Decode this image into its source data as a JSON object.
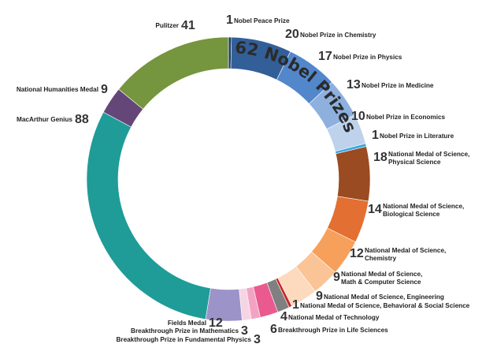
{
  "chart_data": {
    "type": "pie",
    "style": "donut",
    "start_angle_deg": 0,
    "direction": "clockwise",
    "arc_title": "62 Nobel Prizes",
    "slices": [
      {
        "label": "Nobel Peace Prize",
        "value": 1,
        "color": "#1f3d66",
        "label_lines": [
          "Nobel Peace Prize"
        ]
      },
      {
        "label": "Nobel Prize in Chemistry",
        "value": 20,
        "color": "#335f98",
        "label_lines": [
          "Nobel Prize in Chemistry"
        ]
      },
      {
        "label": "Nobel Prize in Physics",
        "value": 17,
        "color": "#5287cc",
        "label_lines": [
          "Nobel Prize in Physics"
        ]
      },
      {
        "label": "Nobel Prize in Medicine",
        "value": 13,
        "color": "#8db0de",
        "label_lines": [
          "Nobel Prize in Medicine"
        ]
      },
      {
        "label": "Nobel Prize in Economics",
        "value": 10,
        "color": "#bed2ec",
        "label_lines": [
          "Nobel Prize in Economics"
        ]
      },
      {
        "label": "Nobel Prize in Literature",
        "value": 1,
        "color": "#36a9e1",
        "label_lines": [
          "Nobel Prize in Literature"
        ]
      },
      {
        "label": "National Medal of Science, Physical Science",
        "value": 18,
        "color": "#9a4b22",
        "label_lines": [
          "National Medal of Science,",
          "Physical Science"
        ]
      },
      {
        "label": "National Medal of Science, Biological Science",
        "value": 14,
        "color": "#e46f32",
        "label_lines": [
          "National Medal of Science,",
          "Biological Science"
        ]
      },
      {
        "label": "National Medal of Science, Chemistry",
        "value": 12,
        "color": "#f7a05b",
        "label_lines": [
          "National Medal of Science,",
          "Chemistry"
        ]
      },
      {
        "label": "National Medal of Science, Math & Computer Science",
        "value": 9,
        "color": "#fbc496",
        "label_lines": [
          "National Medal of Science,",
          "Math & Computer Science"
        ]
      },
      {
        "label": "National Medal of Science, Engineering",
        "value": 9,
        "color": "#fdd9bd",
        "label_lines": [
          "National Medal of Science, Engineering"
        ]
      },
      {
        "label": "National Medal of Science, Behavioral & Social Science",
        "value": 1,
        "color": "#c62828",
        "label_lines": [
          "National Medal of Science, Behavioral & Social Science"
        ]
      },
      {
        "label": "National Medal of Technology",
        "value": 4,
        "color": "#808080",
        "label_lines": [
          "National Medal of Technology"
        ]
      },
      {
        "label": "Breakthrough Prize in Life Sciences",
        "value": 6,
        "color": "#ea5a8f",
        "label_lines": [
          "Breakthrough Prize in Life Sciences"
        ]
      },
      {
        "label": "Breakthrough Prize in Fundamental Physics",
        "value": 3,
        "color": "#f3a3c2",
        "label_lines": [
          "Breakthrough Prize in Fundamental Physics"
        ]
      },
      {
        "label": "Breakthrough Prize in Mathematics",
        "value": 3,
        "color": "#f5d5e4",
        "label_lines": [
          "Breakthrough Prize in Mathematics"
        ]
      },
      {
        "label": "Fields Medal",
        "value": 12,
        "color": "#9c93c9",
        "label_lines": [
          "Fields Medal"
        ]
      },
      {
        "label": "MacArthur Genius",
        "value": 88,
        "color": "#1f9c98",
        "label_lines": [
          "MacArthur Genius"
        ]
      },
      {
        "label": "National Humanities Medal",
        "value": 9,
        "color": "#644678",
        "label_lines": [
          "National Humanities Medal"
        ]
      },
      {
        "label": "Pulitzer",
        "value": 41,
        "color": "#75953e",
        "label_lines": [
          "Pulitzer"
        ]
      }
    ]
  }
}
